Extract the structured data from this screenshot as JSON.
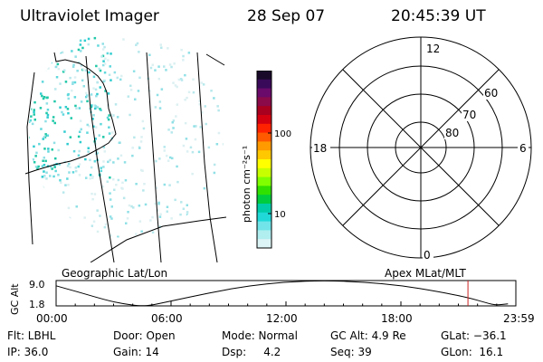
{
  "header": {
    "title": "Ultraviolet Imager",
    "date": "28 Sep 07",
    "time": "20:45:39 UT"
  },
  "colorbar": {
    "unit_label": "photon cm⁻²s⁻¹",
    "tick_labels": [
      "100",
      "10"
    ],
    "colors": [
      "#1a0a2a",
      "#3a0a5a",
      "#6a0a6a",
      "#8a0a4a",
      "#a8001e",
      "#d40010",
      "#ff2200",
      "#ff5a00",
      "#ff9a00",
      "#ffc800",
      "#ffff00",
      "#c8ff00",
      "#80ff00",
      "#30e000",
      "#00cc40",
      "#00ccaa",
      "#20d8d8",
      "#70e4e8",
      "#b0eef0",
      "#dcf4f6"
    ]
  },
  "polar": {
    "mlt_labels": {
      "top": "12",
      "left": "18",
      "right": "6",
      "bottom": "0"
    },
    "lat_labels": [
      "60",
      "70",
      "80"
    ]
  },
  "timeline": {
    "left_title": "Geographic Lat/Lon",
    "right_title": "Apex MLat/MLT",
    "y_axis_label": "GC Alt",
    "y_ticks": [
      "9.0",
      "1.8"
    ],
    "x_ticks": [
      "00:00",
      "06:00",
      "12:00",
      "18:00",
      "23:59"
    ],
    "marker_color": "#cc2222"
  },
  "chart_data": {
    "type": "line",
    "title": "",
    "xlabel": "",
    "ylabel": "GC Alt",
    "x": [
      0,
      1,
      2,
      3,
      4,
      4.5,
      5,
      6,
      8,
      10,
      12,
      14,
      16,
      18,
      20,
      21.5,
      22.5,
      23,
      23.59
    ],
    "series": [
      {
        "values": [
          7.5,
          6.0,
          4.4,
          2.9,
          2.0,
          1.8,
          2.0,
          3.2,
          5.5,
          7.5,
          8.6,
          9.0,
          8.6,
          7.6,
          5.8,
          4.2,
          2.6,
          2.0,
          2.4
        ]
      }
    ],
    "ylim": [
      1.8,
      9.0
    ],
    "xlim": [
      0,
      24
    ],
    "marker_x": 21.5
  },
  "status": {
    "filter": "Flt: LBHL",
    "ip": "IP: 36.0",
    "door": "Door: Open",
    "gain": "Gain: 14",
    "mode": "Mode: Normal",
    "dsp": "Dsp:     4.2",
    "gc_alt": "GC Alt: 4.9 Re",
    "seq": "Seq: 39",
    "glat": "GLat: −36.1",
    "glon": "GLon:  16.1"
  }
}
